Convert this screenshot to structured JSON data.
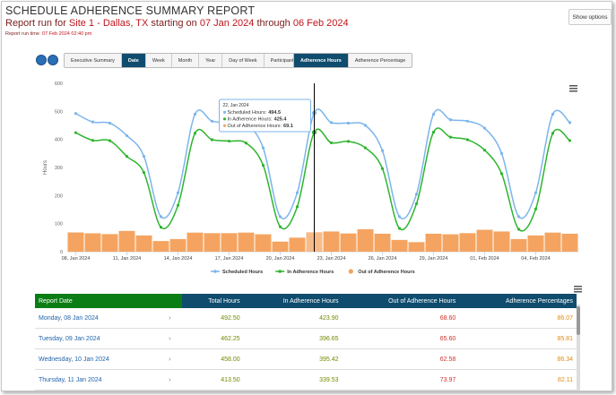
{
  "header": {
    "title": "SCHEDULE ADHERENCE SUMMARY REPORT",
    "subtitle": [
      "Report run for ",
      "Site 1 - Dallas, TX",
      " starting on ",
      "07 Jan 2024",
      " through ",
      "06 Feb 2024"
    ],
    "run_time_label": "Report run time",
    "run_time": "07 Feb 2024 02:40 pm",
    "show_options": "Show options"
  },
  "tabs": [
    "Executive Summary",
    "Date",
    "Week",
    "Month",
    "Year",
    "Day of Week",
    "Participant"
  ],
  "active_tab": "Date",
  "measure_tabs": [
    "Adherence Hours",
    "Adherence Percentage"
  ],
  "active_measure": "Adherence Hours",
  "chart_data": {
    "type": "combo",
    "y_label": "Hours",
    "categories": [
      "08, Jan 2024",
      null,
      null,
      "11, Jan 2024",
      null,
      null,
      "14, Jan 2024",
      null,
      null,
      "17, Jan 2024",
      null,
      null,
      "20, Jan 2024",
      null,
      null,
      "23, Jan 2024",
      null,
      null,
      "26, Jan 2024",
      null,
      null,
      "29, Jan 2024",
      null,
      null,
      "01, Feb 2024",
      null,
      null,
      "04, Feb 2024",
      null,
      null
    ],
    "ylim": [
      0,
      600
    ],
    "yticks": [
      0,
      100,
      200,
      300,
      400,
      500,
      600
    ],
    "grid": false,
    "series": [
      {
        "name": "Scheduled Hours",
        "type": "line",
        "color": "#7cb5ec",
        "values": [
          492.5,
          462.25,
          458,
          413.5,
          340,
          125,
          210,
          490,
          465,
          460,
          455,
          370,
          125,
          210,
          494.5,
          460,
          458,
          450,
          360,
          125,
          205,
          490,
          470,
          465,
          440,
          350,
          125,
          210,
          490,
          460
        ]
      },
      {
        "name": "In Adherence Hours",
        "type": "line",
        "color": "#2db52d",
        "values": [
          423.9,
          396.65,
          395.42,
          339.53,
          282,
          87,
          165,
          422,
          399,
          394,
          387,
          308,
          89,
          160,
          425.4,
          388,
          393,
          370,
          296,
          83,
          171,
          426,
          408,
          399,
          362,
          278,
          80,
          152,
          422,
          396
        ]
      },
      {
        "name": "Out of Adherence Hours",
        "type": "bar",
        "color": "#f4a460",
        "values": [
          68.6,
          65.6,
          62.58,
          73.97,
          58,
          38,
          45,
          68,
          66,
          66,
          68,
          62,
          36,
          50,
          69.1,
          72,
          65,
          80,
          64,
          42,
          34,
          64,
          62,
          66,
          78,
          72,
          45,
          58,
          68,
          64
        ]
      }
    ],
    "legend": "bottom",
    "tooltip": {
      "index": 14,
      "title": "22, Jan 2024",
      "labels": [
        "Scheduled Hours:",
        "In Adherence Hours:",
        "Out of Adherence Hours:"
      ]
    }
  },
  "table": {
    "columns": [
      "Report Date",
      "Total Hours",
      "In Adherence Hours",
      "Out of Adherence Hours",
      "Adherence Percentages"
    ],
    "rows": [
      [
        "Monday, 08 Jan 2024",
        "492.50",
        "423.90",
        "68.60",
        "86.07"
      ],
      [
        "Tuesday, 09 Jan 2024",
        "462.25",
        "396.65",
        "65.60",
        "85.81"
      ],
      [
        "Wednesday, 10 Jan 2024",
        "458.00",
        "395.42",
        "62.58",
        "86.34"
      ],
      [
        "Thursday, 11 Jan 2024",
        "413.50",
        "339.53",
        "73.97",
        "82.11"
      ]
    ]
  }
}
